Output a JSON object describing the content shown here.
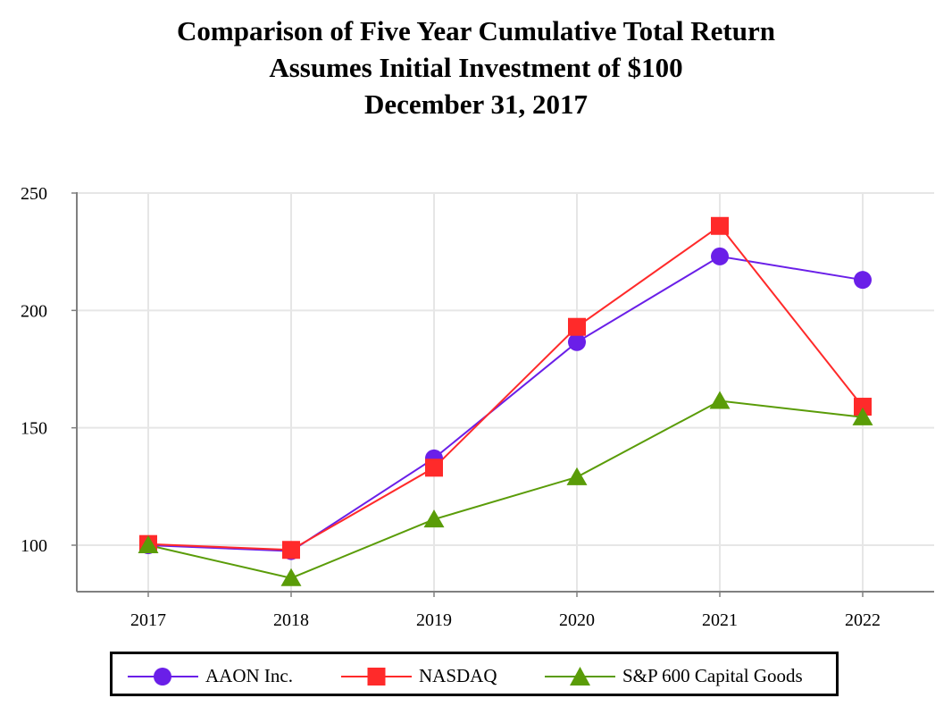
{
  "title_lines": [
    "Comparison of Five Year Cumulative Total Return",
    "Assumes Initial Investment of $100",
    "December 31, 2017"
  ],
  "chart_data": {
    "type": "line",
    "title": "Comparison of Five Year Cumulative Total Return\nAssumes Initial Investment of $100\nDecember 31, 2017",
    "xlabel": "",
    "ylabel": "",
    "categories": [
      "2017",
      "2018",
      "2019",
      "2020",
      "2021",
      "2022"
    ],
    "y_ticks": [
      "100",
      "150",
      "200",
      "250"
    ],
    "y_tick_values": [
      100,
      150,
      200,
      250
    ],
    "ylim": [
      80,
      250
    ],
    "grid": true,
    "legend_position": "bottom",
    "series": [
      {
        "name": "AAON Inc.",
        "color": "#6a1fe8",
        "marker": "circle",
        "values": [
          100,
          97.5,
          137,
          186.5,
          223,
          213
        ]
      },
      {
        "name": "NASDAQ",
        "color": "#ff2a2a",
        "marker": "square",
        "values": [
          100.5,
          98,
          133,
          193,
          236,
          159
        ]
      },
      {
        "name": "S&P 600 Capital Goods",
        "color": "#5a9c08",
        "marker": "triangle",
        "values": [
          100,
          86,
          111,
          129,
          161.5,
          154.5
        ]
      }
    ]
  }
}
